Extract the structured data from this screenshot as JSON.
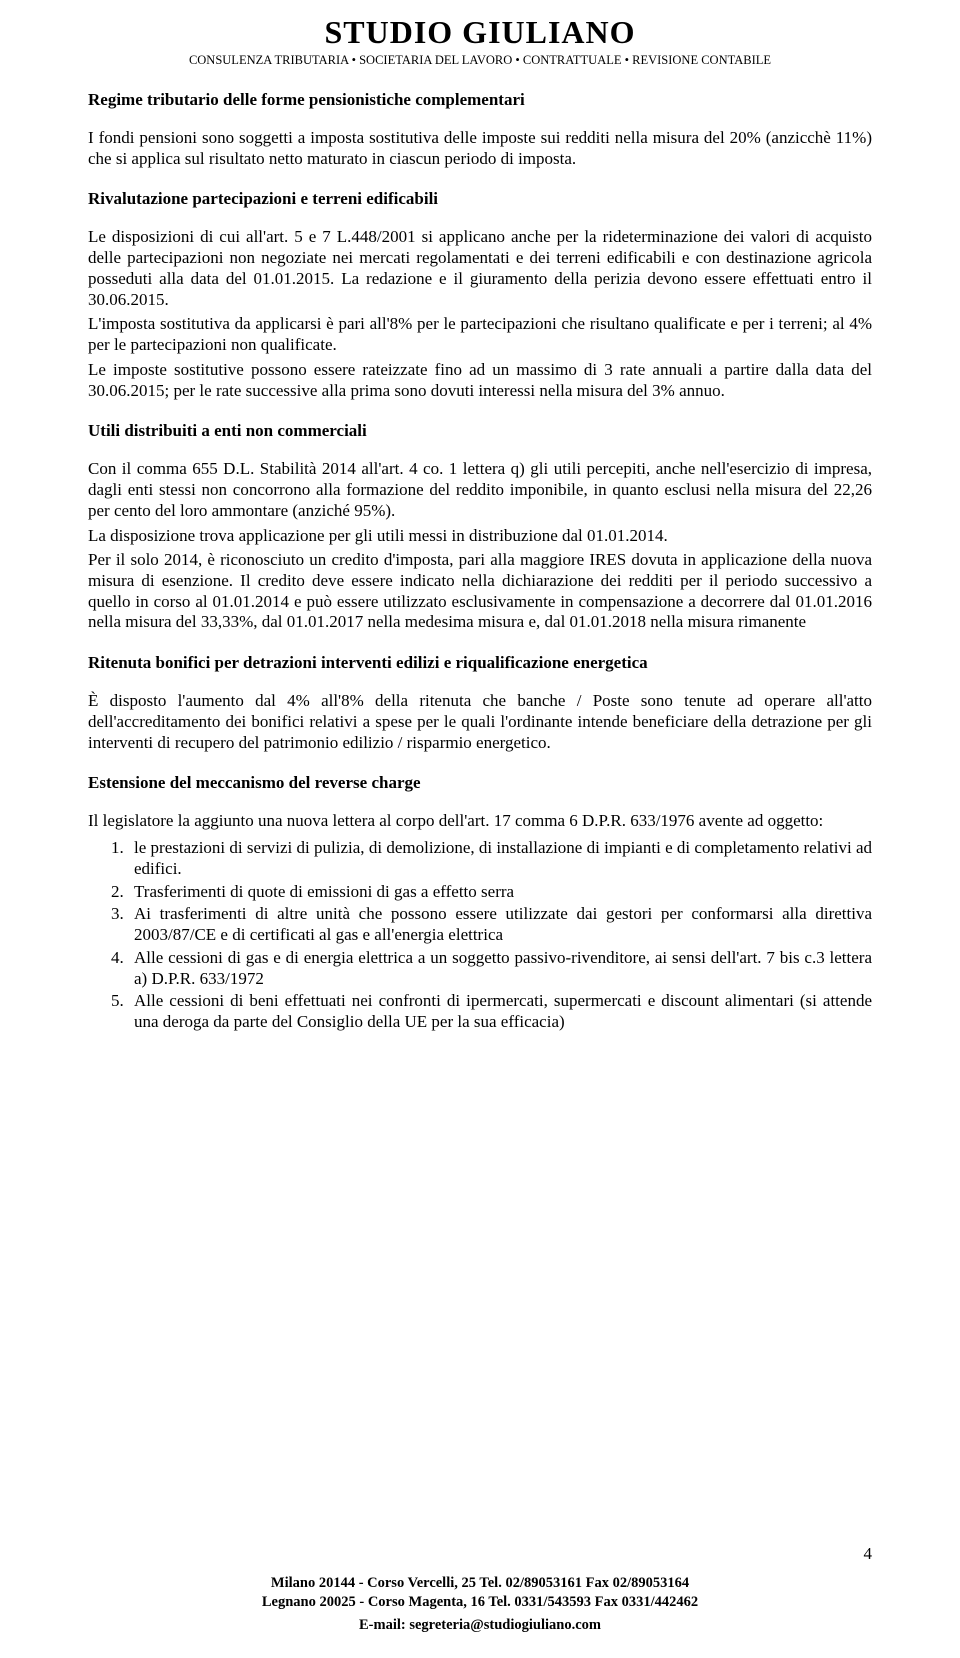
{
  "header": {
    "title": "STUDIO   GIULIANO",
    "subtitle": "CONSULENZA TRIBUTARIA • SOCIETARIA  DEL LAVORO • CONTRATTUALE  • REVISIONE CONTABILE"
  },
  "sections": {
    "s1": {
      "heading": "Regime tributario delle forme pensionistiche complementari",
      "p1": "I fondi pensioni sono soggetti a imposta sostitutiva delle imposte sui redditi nella misura del 20% (anzicchè 11%) che si applica sul risultato netto maturato in ciascun periodo di imposta."
    },
    "s2": {
      "heading": "Rivalutazione partecipazioni e terreni edificabili",
      "p1": "Le disposizioni di cui all'art. 5 e 7 L.448/2001 si applicano anche per la rideterminazione dei valori di acquisto delle partecipazioni non negoziate nei mercati regolamentati e dei terreni edificabili e con destinazione agricola posseduti alla data del 01.01.2015. La redazione e il giuramento della perizia devono essere effettuati entro il 30.06.2015.",
      "p2": "L'imposta sostitutiva da applicarsi è pari all'8% per le partecipazioni che risultano qualificate e per i terreni; al 4% per le partecipazioni non qualificate.",
      "p3": "Le imposte sostitutive possono essere rateizzate fino ad un massimo di 3 rate annuali a partire dalla data del 30.06.2015; per le rate successive alla prima sono dovuti interessi nella misura del 3% annuo."
    },
    "s3": {
      "heading": "Utili distribuiti a enti non commerciali",
      "p1": "Con il comma 655 D.L. Stabilità 2014 all'art. 4 co. 1 lettera q) gli utili percepiti, anche nell'esercizio di impresa, dagli enti stessi non concorrono alla formazione del reddito imponibile, in quanto esclusi nella misura del 22,26 per cento del loro ammontare (anziché 95%).",
      "p2": "La disposizione trova applicazione per gli utili messi in distribuzione dal 01.01.2014.",
      "p3": "Per il solo 2014, è riconosciuto un credito d'imposta, pari alla maggiore IRES dovuta in applicazione della nuova misura di esenzione. Il credito deve essere indicato nella dichiarazione dei redditi per il periodo successivo a quello in corso al 01.01.2014 e può essere utilizzato esclusivamente in compensazione a decorrere dal 01.01.2016 nella misura del 33,33%, dal 01.01.2017 nella medesima misura e, dal 01.01.2018 nella misura rimanente"
    },
    "s4": {
      "heading": "Ritenuta bonifici per detrazioni interventi edilizi e riqualificazione energetica",
      "p1": "È disposto l'aumento dal 4% all'8% della ritenuta che banche / Poste sono tenute ad operare all'atto dell'accreditamento dei bonifici relativi a spese per le quali l'ordinante intende beneficiare della detrazione per gli interventi di recupero del patrimonio edilizio / risparmio energetico."
    },
    "s5": {
      "heading": "Estensione del meccanismo del reverse charge",
      "p1": "Il legislatore la aggiunto una nuova lettera al corpo dell'art. 17 comma 6 D.P.R. 633/1976 avente ad oggetto:",
      "li1": "le prestazioni di servizi di pulizia, di demolizione, di installazione di impianti e di completamento relativi ad edifici.",
      "li2": "Trasferimenti di quote di emissioni di gas a effetto serra",
      "li3": "Ai trasferimenti di altre unità che possono essere utilizzate dai gestori per conformarsi alla direttiva 2003/87/CE e di certificati al gas e all'energia elettrica",
      "li4": "Alle cessioni di gas e di energia elettrica a un soggetto passivo-rivenditore, ai sensi dell'art. 7 bis c.3 lettera a) D.P.R. 633/1972",
      "li5": "Alle cessioni di beni effettuati nei confronti di ipermercati, supermercati e discount alimentari (si attende una deroga da parte del Consiglio della UE per la sua efficacia)"
    }
  },
  "pagenum": "4",
  "footer": {
    "line1": "Milano 20144   - Corso Vercelli, 25  Tel. 02/89053161  Fax 02/89053164",
    "line2": "Legnano 20025 - Corso Magenta, 16  Tel. 0331/543593  Fax 0331/442462",
    "email": "E-mail: segreteria@studiogiuliano.com"
  }
}
